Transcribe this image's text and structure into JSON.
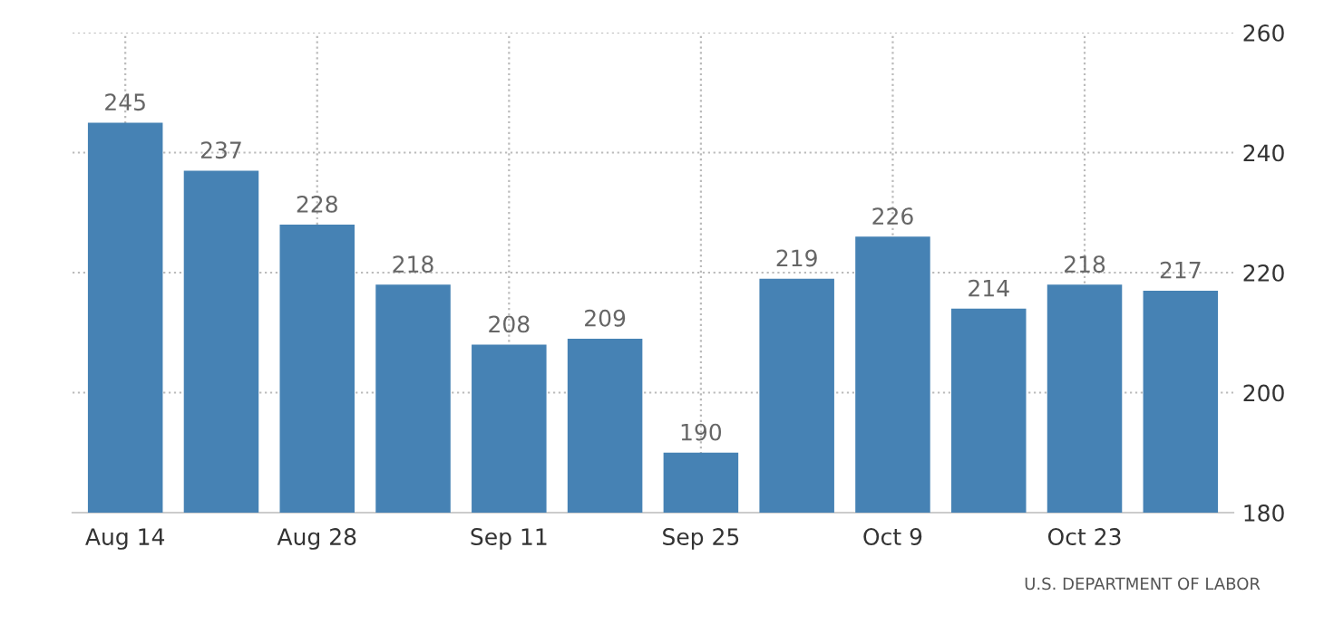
{
  "chart_data": {
    "type": "bar",
    "categories": [
      "Aug 14",
      null,
      "Aug 28",
      null,
      "Sep 11",
      null,
      "Sep 25",
      null,
      "Oct 9",
      null,
      "Oct 23",
      null
    ],
    "values": [
      245,
      237,
      228,
      218,
      208,
      209,
      190,
      219,
      226,
      214,
      218,
      217
    ],
    "color": "#4682b4",
    "ylim": [
      180,
      260
    ],
    "yticks": [
      180,
      200,
      220,
      240,
      260
    ],
    "grid": true,
    "data_labels": true,
    "annotations": [
      "U.S. DEPARTMENT OF LABOR"
    ]
  }
}
